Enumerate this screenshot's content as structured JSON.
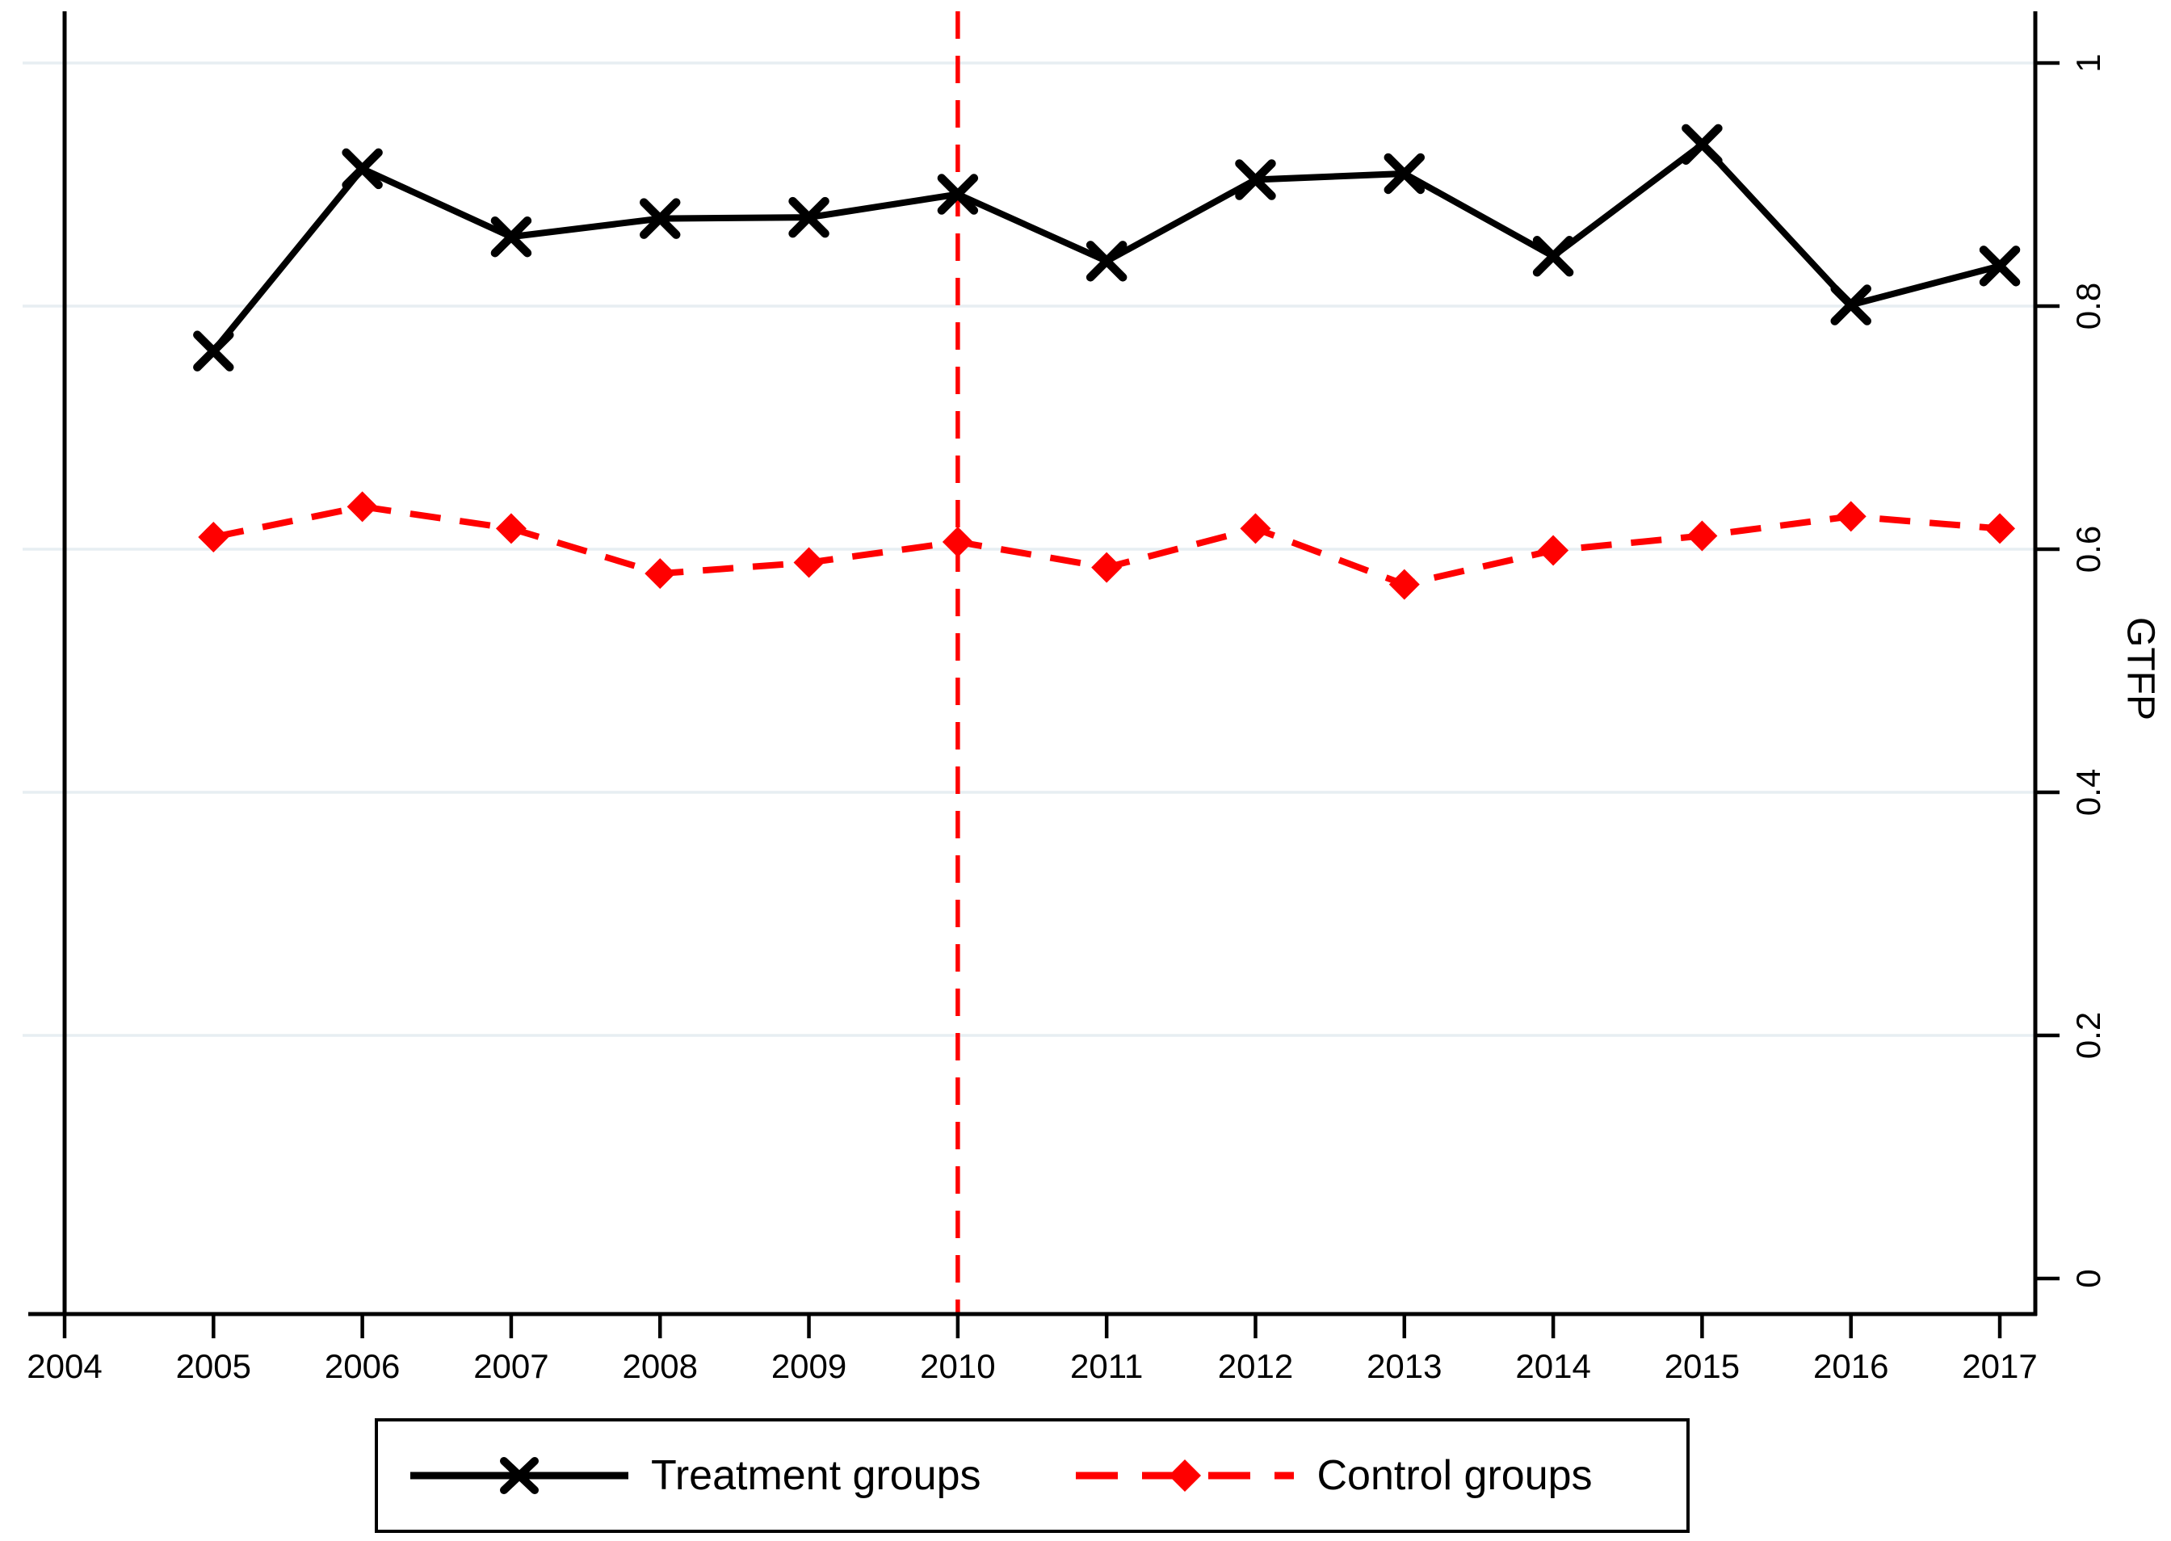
{
  "chart_data": {
    "type": "line",
    "title": "",
    "xlabel": "",
    "ylabel": "GTFP",
    "xlim": [
      2004,
      2017
    ],
    "ylim": [
      0,
      1
    ],
    "grid": "horizontal",
    "grid_color": "#e7eef2",
    "background": "#ffffff",
    "legend_position": "bottom",
    "x": [
      2005,
      2006,
      2007,
      2008,
      2009,
      2010,
      2011,
      2012,
      2013,
      2014,
      2015,
      2016,
      2017
    ],
    "series": [
      {
        "name": "Treatment groups",
        "color": "#000000",
        "line_style": "solid",
        "marker": "x",
        "values": [
          0.763,
          0.913,
          0.857,
          0.872,
          0.873,
          0.892,
          0.837,
          0.904,
          0.909,
          0.841,
          0.933,
          0.801,
          0.833
        ]
      },
      {
        "name": "Control groups",
        "color": "#ff0000",
        "line_style": "dashed",
        "marker": "diamond",
        "values": [
          0.61,
          0.635,
          0.617,
          0.58,
          0.589,
          0.606,
          0.585,
          0.617,
          0.571,
          0.599,
          0.611,
          0.627,
          0.617
        ]
      }
    ],
    "event_line": {
      "x": 2010,
      "color": "#ff0000",
      "style": "dashed"
    },
    "xticks": {
      "values": [
        2004,
        2005,
        2006,
        2007,
        2008,
        2009,
        2010,
        2011,
        2012,
        2013,
        2014,
        2015,
        2016,
        2017
      ],
      "labels": [
        "2004",
        "2005",
        "2006",
        "2007",
        "2008",
        "2009",
        "2010",
        "2011",
        "2012",
        "2013",
        "2014",
        "2015",
        "2016",
        "2017"
      ]
    },
    "yticks": {
      "values": [
        0,
        0.2,
        0.4,
        0.6,
        0.8,
        1
      ],
      "labels": [
        "0",
        "0.2",
        "0.4",
        "0.6",
        "0.8",
        "1"
      ],
      "gridline_values": [
        0.2,
        0.4,
        0.6,
        0.8,
        1
      ]
    }
  },
  "legend": {
    "items": [
      {
        "label": "Treatment groups"
      },
      {
        "label": "Control groups"
      }
    ]
  }
}
